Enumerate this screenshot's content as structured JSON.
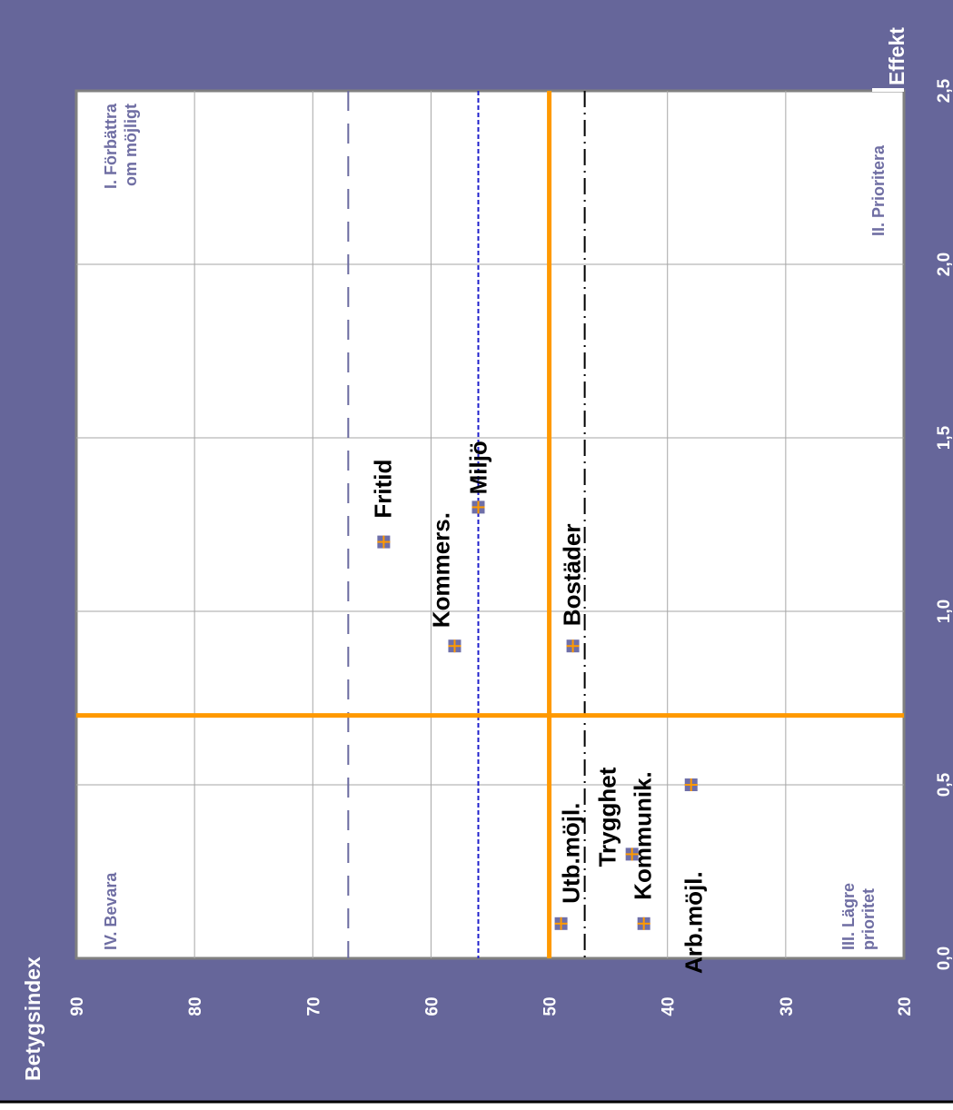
{
  "chart_data": {
    "type": "scatter",
    "orientation": "rotated-90-ccw",
    "x_axis": {
      "label": "Effekt",
      "min": 0.0,
      "max": 2.5,
      "ticks": [
        "0,0",
        "0,5",
        "1,0",
        "1,5",
        "2,0",
        "2,5"
      ],
      "tick_values": [
        0.0,
        0.5,
        1.0,
        1.5,
        2.0,
        2.5
      ]
    },
    "y_axis": {
      "label": "Betygsindex",
      "min": 20,
      "max": 90,
      "ticks": [
        "20",
        "30",
        "40",
        "50",
        "60",
        "70",
        "80",
        "90"
      ],
      "tick_values": [
        20,
        30,
        40,
        50,
        60,
        70,
        80,
        90
      ]
    },
    "grid": true,
    "quadrant_labels": [
      {
        "lines": [
          "I. Förbättra",
          "om möjligt"
        ],
        "anchor": "high-effekt-high-index"
      },
      {
        "lines": [
          "II. Prioritera"
        ],
        "anchor": "high-effekt-low-index"
      },
      {
        "lines": [
          "III. Lägre",
          "prioritet"
        ],
        "anchor": "low-effekt-low-index"
      },
      {
        "lines": [
          "IV. Bevara"
        ],
        "anchor": "low-effekt-high-index"
      }
    ],
    "divider_lines": [
      {
        "axis": "index",
        "value": 50,
        "style": "solid",
        "color": "#ff9900"
      },
      {
        "axis": "effekt",
        "value": 0.7,
        "style": "solid",
        "color": "#ff9900"
      }
    ],
    "reference_lines": [
      {
        "axis": "index",
        "value": 67,
        "style": "long-dash",
        "color": "#6a6aa0"
      },
      {
        "axis": "index",
        "value": 56,
        "style": "short-dash",
        "color": "#1f1fcc"
      },
      {
        "axis": "index",
        "value": 47,
        "style": "dash-dot",
        "color": "#000000"
      }
    ],
    "points": [
      {
        "label": "Fritid",
        "x": 1.2,
        "y": 64
      },
      {
        "label": "Miljö",
        "x": 1.3,
        "y": 56
      },
      {
        "label": "Kommers.",
        "x": 0.9,
        "y": 58
      },
      {
        "label": "Bostäder",
        "x": 0.9,
        "y": 48
      },
      {
        "label": "Utb.möjl.",
        "x": 0.1,
        "y": 49
      },
      {
        "label": "Trygghet",
        "x": 0.3,
        "y": 43
      },
      {
        "label": "Kommunik.",
        "x": 0.1,
        "y": 42
      },
      {
        "label": "Arb.möjl.",
        "x": 0.5,
        "y": 38
      }
    ]
  },
  "colors": {
    "frame_bg": "#66669a",
    "plot_bg": "#ffffff",
    "grid": "#a6a6a6",
    "marker_fill": "#6f6fa8",
    "marker_cross": "#ff9900",
    "quadrant_text": "#6f6ea3"
  }
}
